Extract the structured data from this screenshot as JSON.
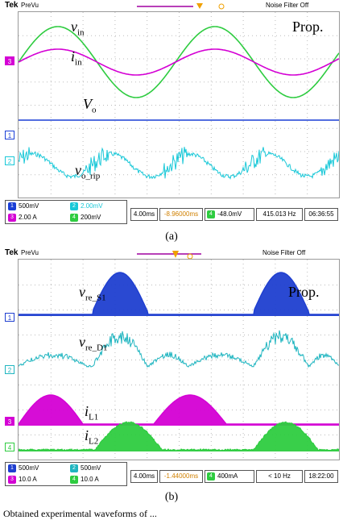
{
  "scope_a": {
    "brand": "Tek",
    "mode": "PreVu",
    "noise_filter": "Noise Filter Off",
    "legend_tag": "Prop.",
    "traces": [
      {
        "id": "vin",
        "label_main": "v",
        "label_sub": "in",
        "color": "#2ecc40"
      },
      {
        "id": "iin",
        "label_main": "i",
        "label_sub": "in",
        "color": "#d400d4"
      },
      {
        "id": "vo",
        "label_main": "V",
        "label_sub": "o",
        "color": "#1a3fd6"
      },
      {
        "id": "vorip",
        "label_main": "v",
        "label_sub": "o_rip",
        "color": "#19c8d8"
      }
    ],
    "channel_markers": [
      "3",
      "1",
      "2"
    ],
    "footer": {
      "ch1_num": "1",
      "ch1": "500mV",
      "ch2_num": "2",
      "ch2": "2.00mV",
      "ch3_num": "3",
      "ch3": "2.00 A",
      "ch4_num": "4",
      "ch4": "200mV",
      "timebase": "4.00ms",
      "delay": "-8.96000ms",
      "trig_ch": "4",
      "trig_level": "-48.0mV",
      "freq": "415.013 Hz",
      "clock": "06:36:55"
    },
    "caption": "(a)"
  },
  "scope_b": {
    "brand": "Tek",
    "mode": "PreVu",
    "noise_filter": "Noise Filter Off",
    "legend_tag": "Prop.",
    "traces": [
      {
        "id": "vreS1",
        "label_main": "v",
        "label_sub": "re_S1",
        "color": "#1f3fd0"
      },
      {
        "id": "vreD1",
        "label_main": "v",
        "label_sub": "re_D1",
        "color": "#1fb5c0"
      },
      {
        "id": "iL1",
        "label_main": "i",
        "label_sub": "L1",
        "color": "#d400d4"
      },
      {
        "id": "iL2",
        "label_main": "i",
        "label_sub": "L2",
        "color": "#2ecc40"
      }
    ],
    "channel_markers": [
      "1",
      "2",
      "3",
      "4"
    ],
    "footer": {
      "ch1_num": "1",
      "ch1": "500mV",
      "ch2_num": "2",
      "ch2": "500mV",
      "ch3_num": "3",
      "ch3": "10.0 A",
      "ch4_num": "4",
      "ch4": "10.0 A",
      "timebase": "4.00ms",
      "delay": "-1.44000ms",
      "trig_ch": "4",
      "trig_level": "400mA",
      "freq": "< 10 Hz",
      "clock": "18:22:00"
    },
    "caption": "(b)"
  },
  "bottom_text": "Obtained experimental waveforms of ..."
}
